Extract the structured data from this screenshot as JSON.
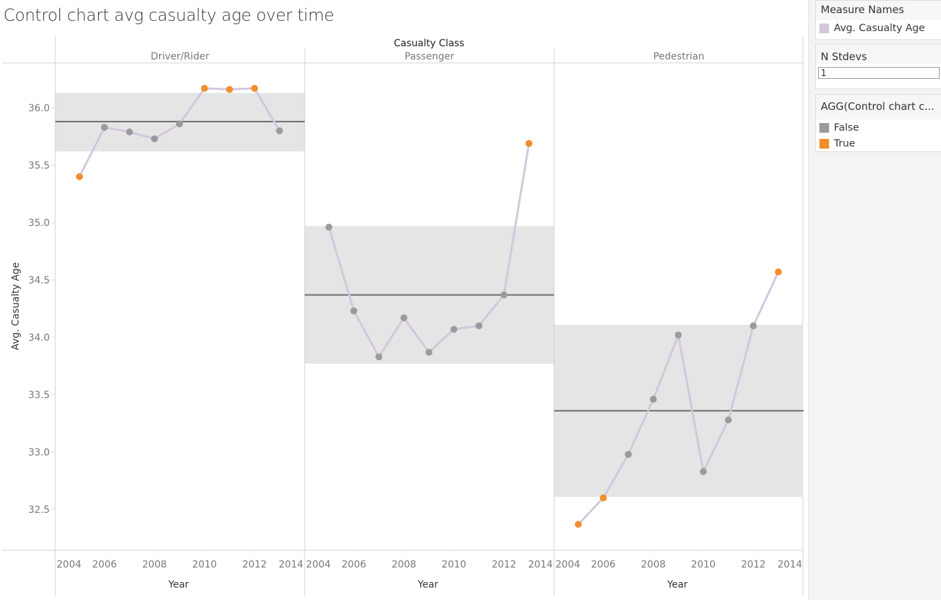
{
  "title": "Control chart avg casualty age over time",
  "sidebar": {
    "measure_names": {
      "title": "Measure Names",
      "items": [
        {
          "label": "Avg. Casualty Age",
          "color": "#d4c6dc"
        }
      ]
    },
    "n_stdevs": {
      "title": "N Stdevs",
      "value": "1"
    },
    "agg_legend": {
      "title": "AGG(Control chart c...",
      "items": [
        {
          "label": "False",
          "color": "#9b9b9b"
        },
        {
          "label": "True",
          "color": "#f28e2b"
        }
      ]
    }
  },
  "chart_data": {
    "type": "line",
    "title": "Control chart avg casualty age over time",
    "column_header": "Casualty Class",
    "xlabel": "Year",
    "ylabel": "Avg. Casualty Age",
    "ylim": [
      32.2,
      36.4
    ],
    "yticks": [
      "32.5",
      "33.0",
      "33.5",
      "34.0",
      "34.5",
      "35.0",
      "35.5",
      "36.0"
    ],
    "xlim": [
      2003.4,
      2014.4
    ],
    "xticks": [
      "2004",
      "2006",
      "2008",
      "2010",
      "2012",
      "2014"
    ],
    "grid": false,
    "legend": "right",
    "colors": {
      "line": "#d4c6dc",
      "false": "#9b9b9b",
      "true": "#f28e2b",
      "band": "#e5e5e5",
      "mean": "#6b6b6b"
    },
    "panels": [
      {
        "name": "Driver/Rider",
        "x": [
          2005,
          2006,
          2007,
          2008,
          2009,
          2010,
          2011,
          2012,
          2013
        ],
        "values": [
          35.4,
          35.83,
          35.79,
          35.73,
          35.86,
          36.17,
          36.16,
          36.17,
          35.8
        ],
        "out_of_control": [
          true,
          false,
          false,
          false,
          false,
          true,
          true,
          true,
          false
        ],
        "mean": 35.88,
        "lower": 35.62,
        "upper": 36.13
      },
      {
        "name": "Passenger",
        "x": [
          2005,
          2006,
          2007,
          2008,
          2009,
          2010,
          2011,
          2012,
          2013
        ],
        "values": [
          34.96,
          34.23,
          33.83,
          34.17,
          33.87,
          34.07,
          34.1,
          34.37,
          35.69
        ],
        "out_of_control": [
          false,
          false,
          false,
          false,
          false,
          false,
          false,
          false,
          true
        ],
        "mean": 34.37,
        "lower": 33.77,
        "upper": 34.97
      },
      {
        "name": "Pedestrian",
        "x": [
          2005,
          2006,
          2007,
          2008,
          2009,
          2010,
          2011,
          2012,
          2013
        ],
        "values": [
          32.37,
          32.6,
          32.98,
          33.46,
          34.02,
          32.83,
          33.28,
          34.1,
          34.57
        ],
        "out_of_control": [
          true,
          true,
          false,
          false,
          false,
          false,
          false,
          false,
          true
        ],
        "mean": 33.36,
        "lower": 32.61,
        "upper": 34.11
      }
    ]
  }
}
